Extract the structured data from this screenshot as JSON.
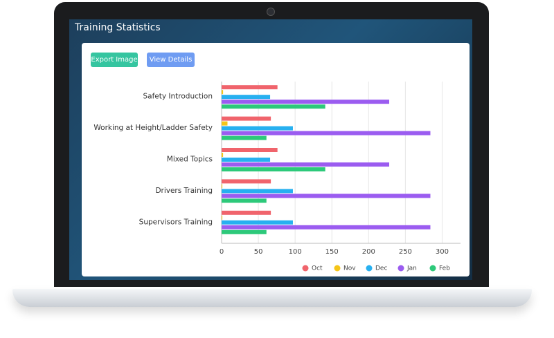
{
  "window_title": "Training Statistics",
  "buttons": [
    "Export Image",
    "View Details"
  ],
  "chart_data": {
    "type": "hbar",
    "categories": [
      "Safety Introduction",
      "Working at Height/Ladder Safety",
      "Mixed Topics",
      "Drivers Training",
      "Supervisors Training"
    ],
    "series": [
      {
        "name": "Oct",
        "color": "#f0646c",
        "values": [
          76,
          67,
          76,
          67,
          67
        ]
      },
      {
        "name": "Nov",
        "color": "#f5c518",
        "values": [
          2,
          8,
          2,
          1,
          1
        ]
      },
      {
        "name": "Dec",
        "color": "#27b0f0",
        "values": [
          66,
          97,
          66,
          97,
          97
        ]
      },
      {
        "name": "Jan",
        "color": "#9b5cf0",
        "values": [
          228,
          284,
          228,
          284,
          284
        ]
      },
      {
        "name": "Feb",
        "color": "#2dc97a",
        "values": [
          141,
          61,
          141,
          61,
          61
        ]
      }
    ],
    "xlim": [
      0,
      325
    ],
    "xticks": [
      0,
      50,
      100,
      150,
      200,
      250,
      300
    ],
    "grid": true,
    "legend": "bottom"
  }
}
